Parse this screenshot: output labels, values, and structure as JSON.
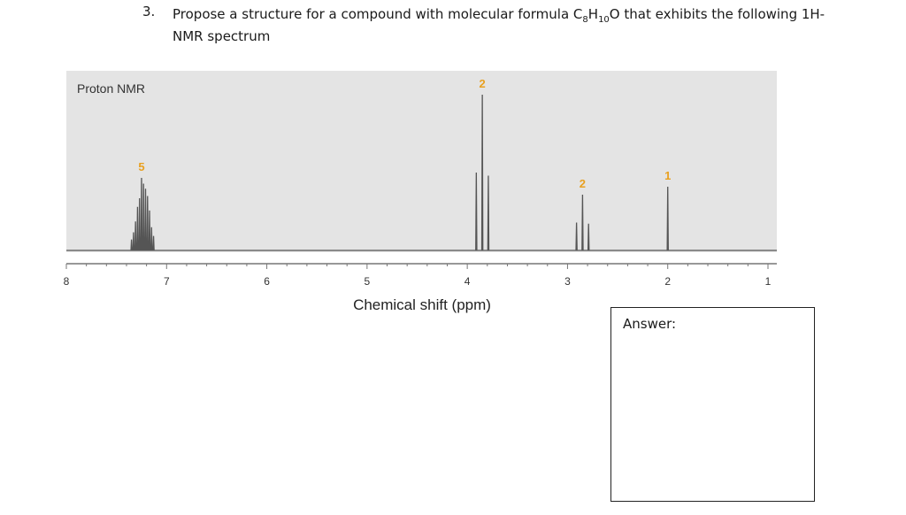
{
  "question": {
    "number": "3.",
    "text_before": "Propose a structure for a compound with molecular formula C",
    "sub_c": "8",
    "text_h": "H",
    "sub_h": "10",
    "text_after": "O that exhibits the following 1H-NMR spectrum"
  },
  "answer": {
    "label": "Answer:"
  },
  "colors": {
    "panel": "#e4e4e4",
    "spectrum": "#555555",
    "integration": "#e8a020",
    "axis": "#777777"
  },
  "chart_data": {
    "type": "line",
    "title": "Proton NMR",
    "xlabel": "Chemical shift (ppm)",
    "ylabel": "",
    "xlim": [
      8,
      1
    ],
    "x_reversed": true,
    "x_ticks": [
      8,
      7,
      6,
      5,
      4,
      3,
      2,
      1
    ],
    "minor_tick_step": 0.2,
    "grid": false,
    "peaks": [
      {
        "shift": 7.25,
        "integration": "5",
        "multiplicity": "multiplet"
      },
      {
        "shift": 3.85,
        "integration": "2",
        "multiplicity": "triplet"
      },
      {
        "shift": 2.85,
        "integration": "2",
        "multiplicity": "triplet"
      },
      {
        "shift": 2.0,
        "integration": "1",
        "multiplicity": "singlet"
      }
    ]
  }
}
